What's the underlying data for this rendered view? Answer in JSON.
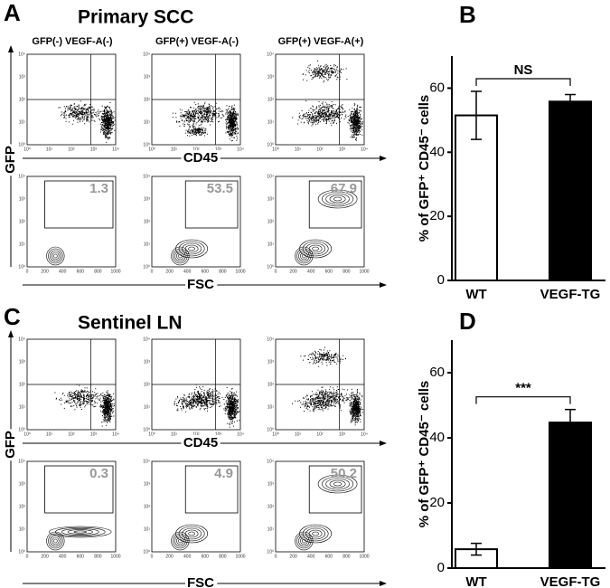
{
  "panels": {
    "A": {
      "letter": "A",
      "title": "Primary SCC",
      "columns": [
        "GFP(-) VEGF-A(-)",
        "GFP(+) VEGF-A(-)",
        "GFP(+) VEGF-A(+)"
      ],
      "gate_percent": [
        "1.3",
        "53.5",
        "67.9"
      ]
    },
    "C": {
      "letter": "C",
      "title": "Sentinel LN",
      "gate_percent": [
        "0.3",
        "4.9",
        "50.2"
      ]
    }
  },
  "axis_labels": {
    "gfp": "GFP",
    "cd45": "CD45",
    "fsc": "FSC"
  },
  "log_ticks": [
    "10⁰",
    "10¹",
    "10²",
    "10³",
    "10⁴"
  ],
  "fsc_ticks": [
    "0",
    "200",
    "400",
    "600",
    "800",
    "1000"
  ],
  "chart_data": [
    {
      "type": "bar",
      "panel_label": "B",
      "ylabel": "% of GFP⁺ CD45⁻ cells",
      "categories": [
        "WT",
        "VEGF-TG"
      ],
      "values": [
        51.5,
        55.8
      ],
      "errors": [
        7.5,
        2.2
      ],
      "colors": [
        "#ffffff",
        "#000000"
      ],
      "ylim": [
        0,
        70
      ],
      "yticks": [
        0,
        20,
        40,
        60
      ],
      "annotation": "NS"
    },
    {
      "type": "bar",
      "panel_label": "D",
      "ylabel": "% of GFP⁺ CD45⁻ cells",
      "categories": [
        "WT",
        "VEGF-TG"
      ],
      "values": [
        5.8,
        44.7
      ],
      "errors": [
        1.8,
        4.0
      ],
      "colors": [
        "#ffffff",
        "#000000"
      ],
      "ylim": [
        0,
        70
      ],
      "yticks": [
        0,
        20,
        40,
        60
      ],
      "annotation": "***"
    }
  ]
}
